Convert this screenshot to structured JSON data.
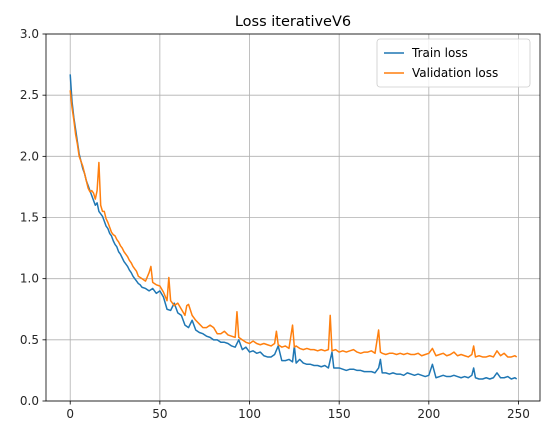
{
  "chart_data": {
    "type": "line",
    "title": "Loss iterativeV6",
    "xlabel": "",
    "ylabel": "",
    "xlim": [
      -13.5,
      262
    ],
    "ylim": [
      0.0,
      3.0
    ],
    "xticks": [
      0,
      50,
      100,
      150,
      200,
      250
    ],
    "yticks": [
      0.0,
      0.5,
      1.0,
      1.5,
      2.0,
      2.5,
      3.0
    ],
    "grid": true,
    "legend_position": "top-right",
    "series": [
      {
        "name": "Train loss",
        "color": "#1f77b4",
        "points": [
          [
            0,
            2.67
          ],
          [
            1,
            2.45
          ],
          [
            2,
            2.32
          ],
          [
            3,
            2.22
          ],
          [
            4,
            2.12
          ],
          [
            5,
            2.02
          ],
          [
            6,
            1.96
          ],
          [
            7,
            1.9
          ],
          [
            8,
            1.86
          ],
          [
            9,
            1.8
          ],
          [
            10,
            1.76
          ],
          [
            11,
            1.72
          ],
          [
            12,
            1.68
          ],
          [
            13,
            1.64
          ],
          [
            14,
            1.6
          ],
          [
            15,
            1.62
          ],
          [
            16,
            1.55
          ],
          [
            17,
            1.53
          ],
          [
            18,
            1.51
          ],
          [
            19,
            1.47
          ],
          [
            20,
            1.43
          ],
          [
            21,
            1.41
          ],
          [
            22,
            1.37
          ],
          [
            23,
            1.35
          ],
          [
            24,
            1.31
          ],
          [
            25,
            1.28
          ],
          [
            26,
            1.26
          ],
          [
            27,
            1.22
          ],
          [
            28,
            1.2
          ],
          [
            29,
            1.17
          ],
          [
            30,
            1.14
          ],
          [
            31,
            1.12
          ],
          [
            32,
            1.1
          ],
          [
            33,
            1.07
          ],
          [
            34,
            1.05
          ],
          [
            35,
            1.02
          ],
          [
            36,
            1.0
          ],
          [
            37,
            0.98
          ],
          [
            38,
            0.96
          ],
          [
            39,
            0.95
          ],
          [
            40,
            0.93
          ],
          [
            42,
            0.92
          ],
          [
            44,
            0.9
          ],
          [
            46,
            0.92
          ],
          [
            48,
            0.88
          ],
          [
            50,
            0.9
          ],
          [
            52,
            0.85
          ],
          [
            54,
            0.75
          ],
          [
            56,
            0.74
          ],
          [
            58,
            0.8
          ],
          [
            60,
            0.72
          ],
          [
            62,
            0.7
          ],
          [
            64,
            0.62
          ],
          [
            66,
            0.6
          ],
          [
            68,
            0.66
          ],
          [
            70,
            0.58
          ],
          [
            72,
            0.56
          ],
          [
            74,
            0.55
          ],
          [
            76,
            0.53
          ],
          [
            78,
            0.52
          ],
          [
            80,
            0.5
          ],
          [
            82,
            0.5
          ],
          [
            84,
            0.48
          ],
          [
            86,
            0.48
          ],
          [
            88,
            0.47
          ],
          [
            90,
            0.45
          ],
          [
            92,
            0.44
          ],
          [
            94,
            0.5
          ],
          [
            96,
            0.42
          ],
          [
            98,
            0.44
          ],
          [
            100,
            0.4
          ],
          [
            102,
            0.41
          ],
          [
            104,
            0.39
          ],
          [
            106,
            0.4
          ],
          [
            108,
            0.37
          ],
          [
            110,
            0.36
          ],
          [
            112,
            0.36
          ],
          [
            114,
            0.38
          ],
          [
            116,
            0.45
          ],
          [
            118,
            0.33
          ],
          [
            120,
            0.33
          ],
          [
            122,
            0.34
          ],
          [
            124,
            0.32
          ],
          [
            125,
            0.45
          ],
          [
            126,
            0.31
          ],
          [
            128,
            0.34
          ],
          [
            130,
            0.31
          ],
          [
            132,
            0.3
          ],
          [
            134,
            0.3
          ],
          [
            136,
            0.29
          ],
          [
            138,
            0.29
          ],
          [
            140,
            0.28
          ],
          [
            142,
            0.29
          ],
          [
            144,
            0.27
          ],
          [
            146,
            0.4
          ],
          [
            147,
            0.27
          ],
          [
            150,
            0.27
          ],
          [
            152,
            0.26
          ],
          [
            154,
            0.25
          ],
          [
            156,
            0.26
          ],
          [
            158,
            0.26
          ],
          [
            160,
            0.25
          ],
          [
            162,
            0.25
          ],
          [
            164,
            0.24
          ],
          [
            166,
            0.24
          ],
          [
            168,
            0.24
          ],
          [
            170,
            0.23
          ],
          [
            172,
            0.27
          ],
          [
            173,
            0.34
          ],
          [
            174,
            0.23
          ],
          [
            176,
            0.23
          ],
          [
            178,
            0.22
          ],
          [
            180,
            0.23
          ],
          [
            182,
            0.22
          ],
          [
            184,
            0.22
          ],
          [
            186,
            0.21
          ],
          [
            188,
            0.23
          ],
          [
            190,
            0.22
          ],
          [
            192,
            0.21
          ],
          [
            194,
            0.22
          ],
          [
            196,
            0.21
          ],
          [
            198,
            0.2
          ],
          [
            200,
            0.21
          ],
          [
            202,
            0.3
          ],
          [
            204,
            0.19
          ],
          [
            206,
            0.2
          ],
          [
            208,
            0.21
          ],
          [
            210,
            0.2
          ],
          [
            212,
            0.2
          ],
          [
            214,
            0.21
          ],
          [
            216,
            0.2
          ],
          [
            218,
            0.19
          ],
          [
            220,
            0.2
          ],
          [
            222,
            0.19
          ],
          [
            224,
            0.21
          ],
          [
            225,
            0.27
          ],
          [
            226,
            0.19
          ],
          [
            228,
            0.18
          ],
          [
            230,
            0.18
          ],
          [
            232,
            0.19
          ],
          [
            234,
            0.18
          ],
          [
            236,
            0.19
          ],
          [
            238,
            0.23
          ],
          [
            240,
            0.19
          ],
          [
            242,
            0.19
          ],
          [
            244,
            0.2
          ],
          [
            246,
            0.18
          ],
          [
            248,
            0.19
          ],
          [
            249,
            0.18
          ]
        ]
      },
      {
        "name": "Validation loss",
        "color": "#ff7f0e",
        "points": [
          [
            0,
            2.54
          ],
          [
            1,
            2.4
          ],
          [
            2,
            2.3
          ],
          [
            3,
            2.18
          ],
          [
            4,
            2.1
          ],
          [
            5,
            2.0
          ],
          [
            6,
            1.96
          ],
          [
            7,
            1.92
          ],
          [
            8,
            1.86
          ],
          [
            9,
            1.8
          ],
          [
            10,
            1.74
          ],
          [
            11,
            1.71
          ],
          [
            12,
            1.72
          ],
          [
            13,
            1.7
          ],
          [
            14,
            1.65
          ],
          [
            15,
            1.72
          ],
          [
            16,
            1.95
          ],
          [
            17,
            1.6
          ],
          [
            18,
            1.55
          ],
          [
            19,
            1.55
          ],
          [
            20,
            1.49
          ],
          [
            21,
            1.46
          ],
          [
            22,
            1.42
          ],
          [
            23,
            1.38
          ],
          [
            24,
            1.36
          ],
          [
            25,
            1.35
          ],
          [
            26,
            1.32
          ],
          [
            27,
            1.3
          ],
          [
            28,
            1.27
          ],
          [
            29,
            1.25
          ],
          [
            30,
            1.22
          ],
          [
            31,
            1.2
          ],
          [
            32,
            1.18
          ],
          [
            33,
            1.15
          ],
          [
            34,
            1.13
          ],
          [
            35,
            1.1
          ],
          [
            36,
            1.08
          ],
          [
            37,
            1.06
          ],
          [
            38,
            1.02
          ],
          [
            39,
            1.01
          ],
          [
            40,
            1.0
          ],
          [
            42,
            0.98
          ],
          [
            44,
            1.05
          ],
          [
            45,
            1.1
          ],
          [
            46,
            0.97
          ],
          [
            48,
            0.95
          ],
          [
            50,
            0.94
          ],
          [
            52,
            0.89
          ],
          [
            54,
            0.82
          ],
          [
            55,
            1.01
          ],
          [
            56,
            0.82
          ],
          [
            58,
            0.78
          ],
          [
            60,
            0.8
          ],
          [
            62,
            0.75
          ],
          [
            64,
            0.7
          ],
          [
            65,
            0.78
          ],
          [
            66,
            0.79
          ],
          [
            68,
            0.7
          ],
          [
            70,
            0.66
          ],
          [
            72,
            0.63
          ],
          [
            74,
            0.6
          ],
          [
            76,
            0.6
          ],
          [
            78,
            0.62
          ],
          [
            80,
            0.6
          ],
          [
            82,
            0.55
          ],
          [
            84,
            0.55
          ],
          [
            86,
            0.57
          ],
          [
            88,
            0.54
          ],
          [
            90,
            0.53
          ],
          [
            92,
            0.52
          ],
          [
            93,
            0.73
          ],
          [
            94,
            0.52
          ],
          [
            96,
            0.5
          ],
          [
            98,
            0.48
          ],
          [
            100,
            0.47
          ],
          [
            102,
            0.49
          ],
          [
            104,
            0.47
          ],
          [
            106,
            0.46
          ],
          [
            108,
            0.47
          ],
          [
            110,
            0.46
          ],
          [
            112,
            0.45
          ],
          [
            114,
            0.47
          ],
          [
            115,
            0.57
          ],
          [
            116,
            0.46
          ],
          [
            118,
            0.44
          ],
          [
            120,
            0.45
          ],
          [
            122,
            0.43
          ],
          [
            124,
            0.62
          ],
          [
            125,
            0.44
          ],
          [
            126,
            0.45
          ],
          [
            128,
            0.43
          ],
          [
            130,
            0.42
          ],
          [
            132,
            0.43
          ],
          [
            134,
            0.42
          ],
          [
            136,
            0.42
          ],
          [
            138,
            0.41
          ],
          [
            140,
            0.42
          ],
          [
            142,
            0.41
          ],
          [
            144,
            0.42
          ],
          [
            145,
            0.7
          ],
          [
            146,
            0.41
          ],
          [
            148,
            0.42
          ],
          [
            150,
            0.4
          ],
          [
            152,
            0.41
          ],
          [
            154,
            0.4
          ],
          [
            156,
            0.41
          ],
          [
            158,
            0.42
          ],
          [
            160,
            0.4
          ],
          [
            162,
            0.39
          ],
          [
            164,
            0.4
          ],
          [
            166,
            0.4
          ],
          [
            168,
            0.41
          ],
          [
            170,
            0.39
          ],
          [
            172,
            0.58
          ],
          [
            173,
            0.4
          ],
          [
            174,
            0.39
          ],
          [
            176,
            0.38
          ],
          [
            178,
            0.39
          ],
          [
            180,
            0.39
          ],
          [
            182,
            0.38
          ],
          [
            184,
            0.39
          ],
          [
            186,
            0.38
          ],
          [
            188,
            0.39
          ],
          [
            190,
            0.38
          ],
          [
            192,
            0.38
          ],
          [
            194,
            0.39
          ],
          [
            196,
            0.37
          ],
          [
            198,
            0.38
          ],
          [
            200,
            0.39
          ],
          [
            202,
            0.43
          ],
          [
            204,
            0.37
          ],
          [
            206,
            0.38
          ],
          [
            208,
            0.39
          ],
          [
            210,
            0.37
          ],
          [
            212,
            0.38
          ],
          [
            214,
            0.4
          ],
          [
            216,
            0.37
          ],
          [
            218,
            0.38
          ],
          [
            220,
            0.37
          ],
          [
            222,
            0.36
          ],
          [
            224,
            0.38
          ],
          [
            225,
            0.45
          ],
          [
            226,
            0.36
          ],
          [
            228,
            0.37
          ],
          [
            230,
            0.36
          ],
          [
            232,
            0.36
          ],
          [
            234,
            0.37
          ],
          [
            236,
            0.36
          ],
          [
            238,
            0.41
          ],
          [
            240,
            0.37
          ],
          [
            242,
            0.39
          ],
          [
            244,
            0.36
          ],
          [
            246,
            0.36
          ],
          [
            248,
            0.37
          ],
          [
            249,
            0.36
          ]
        ]
      }
    ]
  }
}
